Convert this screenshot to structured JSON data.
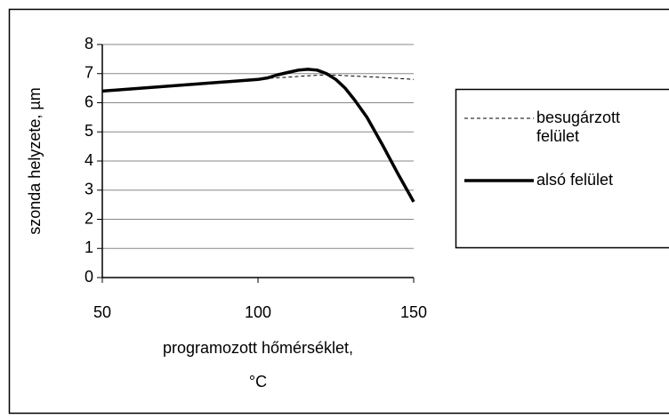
{
  "chart_data": {
    "type": "line",
    "ylabel": "szonda helyzete, µm",
    "xlabel": [
      "programozott hőmérséklet,",
      "°C"
    ],
    "xlim": [
      50,
      150
    ],
    "xticks": [
      50,
      100,
      150
    ],
    "ylim": [
      0,
      8
    ],
    "yticks": [
      0,
      1,
      2,
      3,
      4,
      5,
      6,
      7,
      8
    ],
    "grid": true,
    "legend": "right",
    "series": [
      {
        "name": "besugárzott felület",
        "color": "#000000",
        "style": "dashed",
        "x": [
          50,
          100,
          105,
          110,
          115,
          120,
          125,
          130,
          140,
          150
        ],
        "values": [
          6.4,
          6.8,
          6.85,
          6.88,
          6.92,
          6.95,
          6.95,
          6.92,
          6.87,
          6.8
        ]
      },
      {
        "name": "alsó felület",
        "color": "#000000",
        "style": "solid",
        "x": [
          50,
          100,
          103,
          106,
          110,
          113,
          116,
          119,
          122,
          125,
          128,
          131,
          135,
          140,
          145,
          150
        ],
        "values": [
          6.4,
          6.8,
          6.85,
          6.95,
          7.05,
          7.12,
          7.15,
          7.12,
          7.0,
          6.8,
          6.5,
          6.1,
          5.5,
          4.55,
          3.55,
          2.6
        ]
      }
    ]
  }
}
